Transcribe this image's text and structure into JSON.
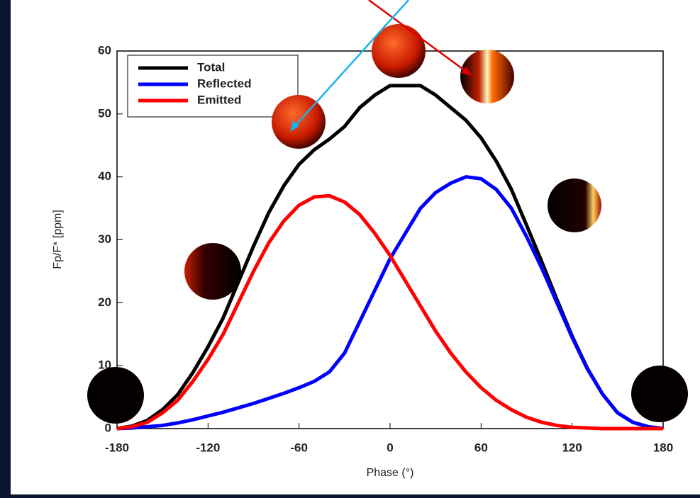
{
  "chart_data": {
    "type": "line",
    "xlabel": "Phase (°)",
    "ylabel": "Fp/F* [ppm]",
    "x": [
      -180,
      -170,
      -160,
      -150,
      -140,
      -130,
      -120,
      -110,
      -100,
      -90,
      -80,
      -70,
      -60,
      -50,
      -40,
      -30,
      -20,
      -10,
      0,
      10,
      20,
      30,
      40,
      50,
      60,
      70,
      80,
      90,
      100,
      110,
      120,
      130,
      140,
      150,
      160,
      170,
      180
    ],
    "series": [
      {
        "name": "Total",
        "color": "#000000",
        "values": [
          0,
          0.4,
          1.3,
          3,
          5.4,
          8.9,
          13,
          17.6,
          23.3,
          29,
          34.3,
          38.6,
          42,
          44.3,
          46,
          48,
          51,
          53,
          54.5,
          54.5,
          54.5,
          53,
          51,
          49,
          46.2,
          42.5,
          38,
          32.3,
          26.5,
          20.5,
          14.7,
          9.6,
          5.5,
          2.5,
          1,
          0.3,
          0
        ]
      },
      {
        "name": "Reflected",
        "color": "#0000ff",
        "values": [
          0,
          0.1,
          0.3,
          0.5,
          0.9,
          1.4,
          2,
          2.6,
          3.3,
          4,
          4.8,
          5.6,
          6.5,
          7.5,
          9,
          12,
          17,
          22,
          27,
          31,
          35,
          37.5,
          39,
          40,
          39.7,
          38,
          35,
          30.5,
          25.5,
          20,
          14.5,
          9.5,
          5.5,
          2.5,
          1,
          0.3,
          0
        ]
      },
      {
        "name": "Emitted",
        "color": "#ff0000",
        "values": [
          0,
          0.3,
          1,
          2.5,
          4.5,
          7.5,
          11,
          15,
          20,
          25,
          29.5,
          33,
          35.5,
          36.8,
          37,
          36,
          34,
          31,
          27.5,
          23.5,
          19.5,
          15.5,
          12,
          9,
          6.5,
          4.5,
          3,
          1.8,
          1,
          0.5,
          0.2,
          0.1,
          0,
          0,
          0,
          0,
          0
        ]
      }
    ],
    "xlim": [
      -180,
      180
    ],
    "xticks": [
      -180,
      -120,
      -60,
      0,
      60,
      120,
      180
    ],
    "ylim": [
      0,
      60
    ],
    "yticks": [
      0,
      10,
      20,
      30,
      40,
      50,
      60
    ],
    "legend": "upper left"
  }
}
